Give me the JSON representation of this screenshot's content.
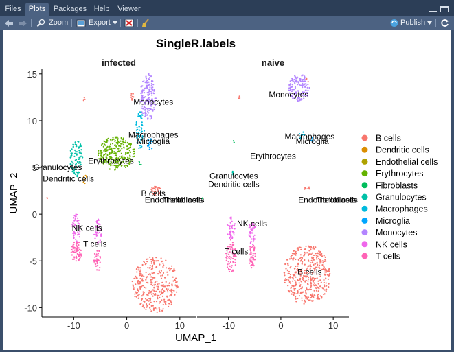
{
  "tabs": [
    {
      "label": "Files",
      "active": false
    },
    {
      "label": "Plots",
      "active": true
    },
    {
      "label": "Packages",
      "active": false
    },
    {
      "label": "Help",
      "active": false
    },
    {
      "label": "Viewer",
      "active": false
    }
  ],
  "toolbar": {
    "zoom_label": "Zoom",
    "export_label": "Export",
    "publish_label": "Publish",
    "icons": [
      "back-arrow-icon",
      "forward-arrow-icon",
      "zoom-icon",
      "export-icon",
      "remove-plot-icon",
      "broom-icon",
      "publish-icon",
      "refresh-icon"
    ]
  },
  "colors": {
    "B cells": "#F8766D",
    "Dendritic cells": "#DB8E00",
    "Endothelial cells": "#AEA200",
    "Erythrocytes": "#64B200",
    "Fibroblasts": "#00BD5C",
    "Granulocytes": "#00C1A7",
    "Macrophages": "#00BADE",
    "Microglia": "#00A6FF",
    "Monocytes": "#B385FF",
    "NK cells": "#EF67EB",
    "T cells": "#FF63B6"
  },
  "chart_data": {
    "type": "scatter",
    "title": "SingleR.labels",
    "xlabel": "UMAP_1",
    "ylabel": "UMAP_2",
    "xticks": [
      -10,
      0,
      10
    ],
    "yticks": [
      -10,
      -5,
      0,
      5,
      10,
      15
    ],
    "xlim": [
      -16,
      13
    ],
    "ylim": [
      -11,
      15.5
    ],
    "legend_position": "right",
    "legend": [
      "B cells",
      "Dendritic cells",
      "Endothelial cells",
      "Erythrocytes",
      "Fibroblasts",
      "Granulocytes",
      "Macrophages",
      "Microglia",
      "Monocytes",
      "NK cells",
      "T cells"
    ],
    "panels": [
      {
        "name": "infected",
        "clusters": [
          {
            "label": "B cells",
            "cx": 5.5,
            "cy": -7.5,
            "rx": 4.5,
            "ry": 3,
            "n": 320
          },
          {
            "label": "B cells",
            "cx": 5.5,
            "cy": 2.5,
            "rx": 1,
            "ry": 0.5,
            "n": 30
          },
          {
            "label": "NK cells",
            "cx": -9.5,
            "cy": -1.5,
            "rx": 0.8,
            "ry": 1.5,
            "n": 50
          },
          {
            "label": "NK cells",
            "cx": -5.5,
            "cy": -2,
            "rx": 0.7,
            "ry": 1.5,
            "n": 35
          },
          {
            "label": "T cells",
            "cx": -9.5,
            "cy": -4,
            "rx": 1,
            "ry": 1.2,
            "n": 55
          },
          {
            "label": "T cells",
            "cx": -5.5,
            "cy": -5,
            "rx": 0.7,
            "ry": 1.2,
            "n": 35
          },
          {
            "label": "Monocytes",
            "cx": 4,
            "cy": 12.5,
            "rx": 1.5,
            "ry": 2.5,
            "n": 160
          },
          {
            "label": "Macrophages",
            "cx": 2.5,
            "cy": 9,
            "rx": 0.8,
            "ry": 2,
            "n": 50
          },
          {
            "label": "Microglia",
            "cx": 4.5,
            "cy": 7.5,
            "rx": 0.6,
            "ry": 0.6,
            "n": 15
          },
          {
            "label": "Erythrocytes",
            "cx": -2,
            "cy": 6.5,
            "rx": 3.5,
            "ry": 1.8,
            "n": 260
          },
          {
            "label": "Granulocytes",
            "cx": -9.5,
            "cy": 6,
            "rx": 1.2,
            "ry": 2,
            "n": 90
          },
          {
            "label": "Dendritic cells",
            "cx": -8,
            "cy": 3.8,
            "rx": 0.5,
            "ry": 0.5,
            "n": 8
          },
          {
            "label": "Fibroblasts",
            "cx": 2.5,
            "cy": 5.5,
            "rx": 0.3,
            "ry": 0.3,
            "n": 4
          },
          {
            "label": "B cells",
            "cx": 1,
            "cy": 12.5,
            "rx": 0.3,
            "ry": 0.5,
            "n": 8
          },
          {
            "label": "B cells",
            "cx": -8,
            "cy": 12.3,
            "rx": 0.2,
            "ry": 0.3,
            "n": 3
          },
          {
            "label": "B cells",
            "cx": -15,
            "cy": 1.8,
            "rx": 0.1,
            "ry": 0.2,
            "n": 2
          }
        ],
        "labels": [
          {
            "text": "Monocytes",
            "x": 5,
            "y": 12
          },
          {
            "text": "Macrophages",
            "x": 5,
            "y": 8.5
          },
          {
            "text": "Microglia",
            "x": 5,
            "y": 7.8
          },
          {
            "text": "Erythrocytes",
            "x": -3,
            "y": 5.7
          },
          {
            "text": "Granulocytes",
            "x": -13,
            "y": 5
          },
          {
            "text": "Dendritic cells",
            "x": -11,
            "y": 3.8
          },
          {
            "text": "B cells",
            "x": 5,
            "y": 2.2
          },
          {
            "text": "Endothelial cells",
            "x": 9,
            "y": 1.5
          },
          {
            "text": "Fibroblasts",
            "x": 10.5,
            "y": 1.5
          },
          {
            "text": "NK cells",
            "x": -7.5,
            "y": -1.5
          },
          {
            "text": "T cells",
            "x": -6,
            "y": -3.2
          }
        ]
      },
      {
        "name": "naive",
        "clusters": [
          {
            "label": "B cells",
            "cx": 5,
            "cy": -6.5,
            "rx": 4.5,
            "ry": 3.2,
            "n": 420
          },
          {
            "label": "B cells",
            "cx": 5,
            "cy": 2.8,
            "rx": 0.5,
            "ry": 0.4,
            "n": 10
          },
          {
            "label": "NK cells",
            "cx": -9.5,
            "cy": -1.5,
            "rx": 0.8,
            "ry": 1.2,
            "n": 45
          },
          {
            "label": "NK cells",
            "cx": -5.5,
            "cy": -2,
            "rx": 0.7,
            "ry": 1.3,
            "n": 40
          },
          {
            "label": "T cells",
            "cx": -9.5,
            "cy": -4.5,
            "rx": 1,
            "ry": 1.8,
            "n": 60
          },
          {
            "label": "T cells",
            "cx": -5.5,
            "cy": -4.5,
            "rx": 0.7,
            "ry": 1.3,
            "n": 45
          },
          {
            "label": "Monocytes",
            "cx": 3.5,
            "cy": 13.5,
            "rx": 2,
            "ry": 1.5,
            "n": 120
          },
          {
            "label": "Macrophages",
            "cx": 4,
            "cy": 8.5,
            "rx": 0.5,
            "ry": 0.5,
            "n": 10
          },
          {
            "label": "Microglia",
            "cx": 6,
            "cy": 8,
            "rx": 0.3,
            "ry": 0.3,
            "n": 5
          },
          {
            "label": "Granulocytes",
            "cx": -9,
            "cy": 4.5,
            "rx": 0.3,
            "ry": 0.3,
            "n": 4
          },
          {
            "label": "Fibroblasts",
            "cx": -15,
            "cy": 1.8,
            "rx": 0.1,
            "ry": 0.2,
            "n": 2
          },
          {
            "label": "Fibroblasts",
            "cx": -9,
            "cy": 7.8,
            "rx": 0.2,
            "ry": 0.2,
            "n": 2
          },
          {
            "label": "B cells",
            "cx": -8,
            "cy": 12.5,
            "rx": 0.2,
            "ry": 0.3,
            "n": 3
          },
          {
            "label": "B cells",
            "cx": 5,
            "cy": 14.3,
            "rx": 0.3,
            "ry": 0.3,
            "n": 4
          }
        ],
        "labels": [
          {
            "text": "Monocytes",
            "x": 1.5,
            "y": 12.8
          },
          {
            "text": "Macrophages",
            "x": 5.5,
            "y": 8.3
          },
          {
            "text": "Microglia",
            "x": 6,
            "y": 7.8
          },
          {
            "text": "Erythrocytes",
            "x": -1.5,
            "y": 6.2
          },
          {
            "text": "Granulocytes",
            "x": -9,
            "y": 4.1
          },
          {
            "text": "Dendritic cells",
            "x": -9,
            "y": 3.2
          },
          {
            "text": "Endothelial cells",
            "x": 9,
            "y": 1.5
          },
          {
            "text": "Fibroblasts",
            "x": 10.5,
            "y": 1.5
          },
          {
            "text": "NK cells",
            "x": -5.5,
            "y": -1
          },
          {
            "text": "T cells",
            "x": -8.5,
            "y": -4
          },
          {
            "text": "B cells",
            "x": 5.5,
            "y": -6.2
          }
        ]
      }
    ]
  }
}
